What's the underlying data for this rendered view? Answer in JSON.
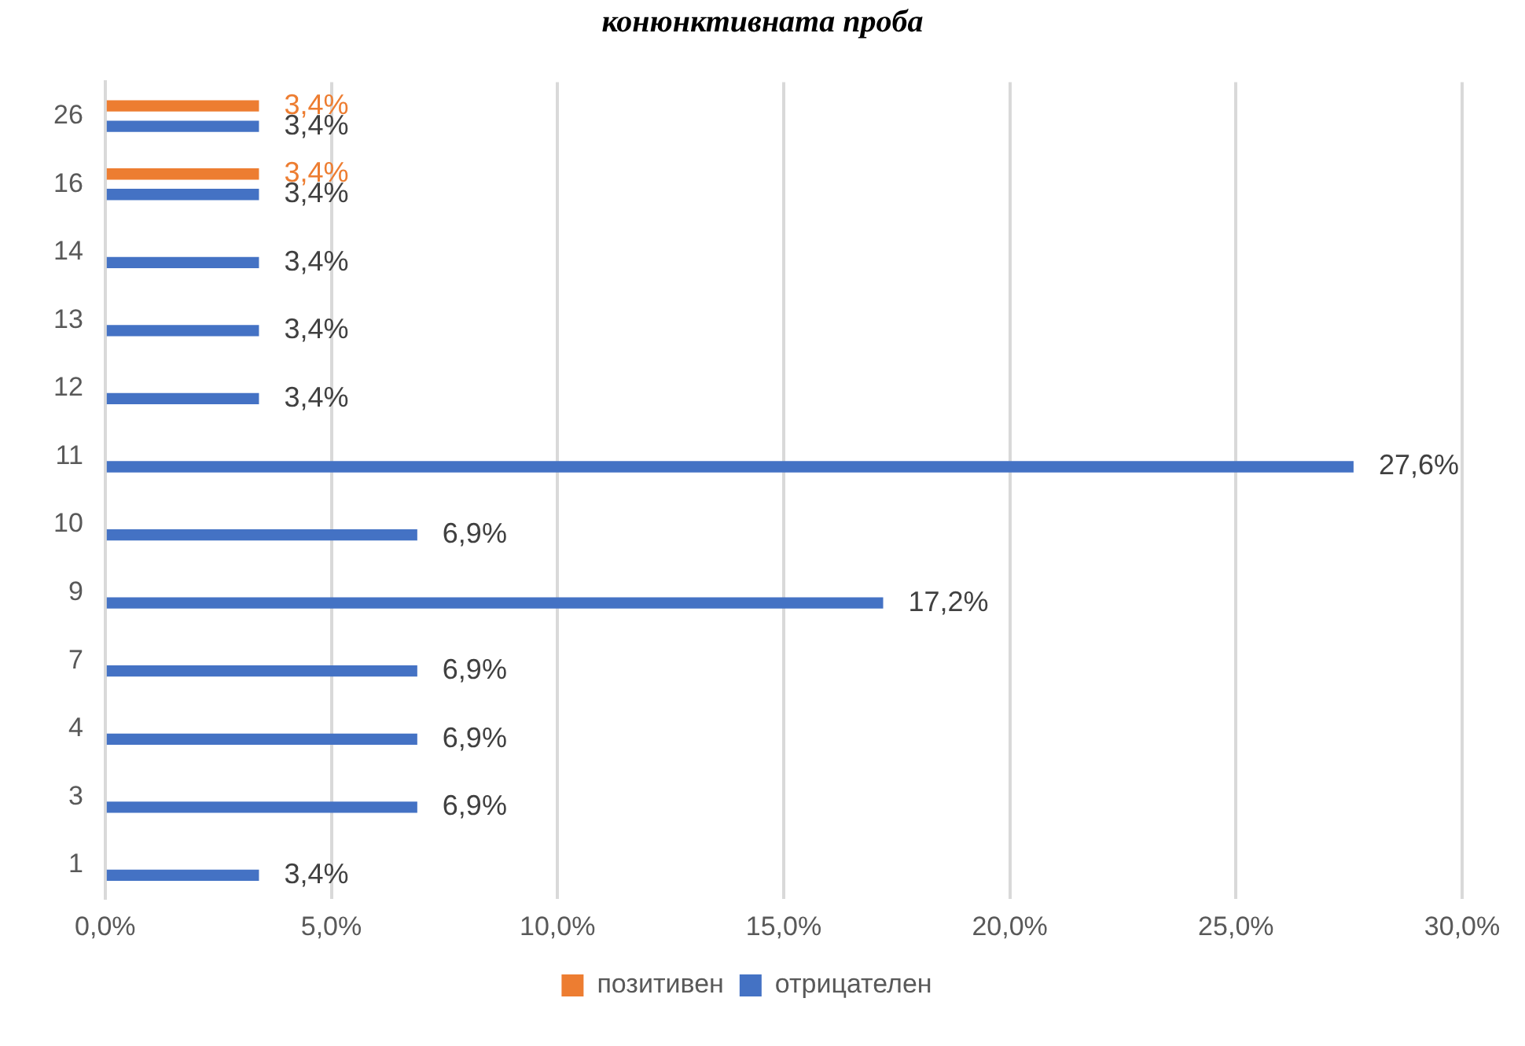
{
  "chart_data": {
    "type": "bar",
    "orientation": "horizontal",
    "title": "конюнктивната проба",
    "categories": [
      "26",
      "16",
      "14",
      "13",
      "12",
      "11",
      "10",
      "9",
      "7",
      "4",
      "3",
      "1"
    ],
    "series": [
      {
        "name": "позитивен",
        "color": "#ed7d31",
        "values": [
          3.4,
          3.4,
          null,
          null,
          null,
          null,
          null,
          null,
          null,
          null,
          null,
          null
        ],
        "value_labels": [
          "3,4%",
          "3,4%",
          null,
          null,
          null,
          null,
          null,
          null,
          null,
          null,
          null,
          null
        ]
      },
      {
        "name": "отрицателен",
        "color": "#4472c4",
        "values": [
          3.4,
          3.4,
          3.4,
          3.4,
          3.4,
          27.6,
          6.9,
          17.2,
          6.9,
          6.9,
          6.9,
          3.4
        ],
        "value_labels": [
          "3,4%",
          "3,4%",
          "3,4%",
          "3,4%",
          "3,4%",
          "27,6%",
          "6,9%",
          "17,2%",
          "6,9%",
          "6,9%",
          "6,9%",
          "3,4%"
        ]
      }
    ],
    "xlim": [
      0,
      30
    ],
    "xticks": [
      {
        "value": 0,
        "label": "0,0%"
      },
      {
        "value": 5,
        "label": "5,0%"
      },
      {
        "value": 10,
        "label": "10,0%"
      },
      {
        "value": 15,
        "label": "15,0%"
      },
      {
        "value": 20,
        "label": "20,0%"
      },
      {
        "value": 25,
        "label": "25,0%"
      },
      {
        "value": 30,
        "label": "30,0%"
      }
    ],
    "grid": "x",
    "legend": "bottom"
  }
}
